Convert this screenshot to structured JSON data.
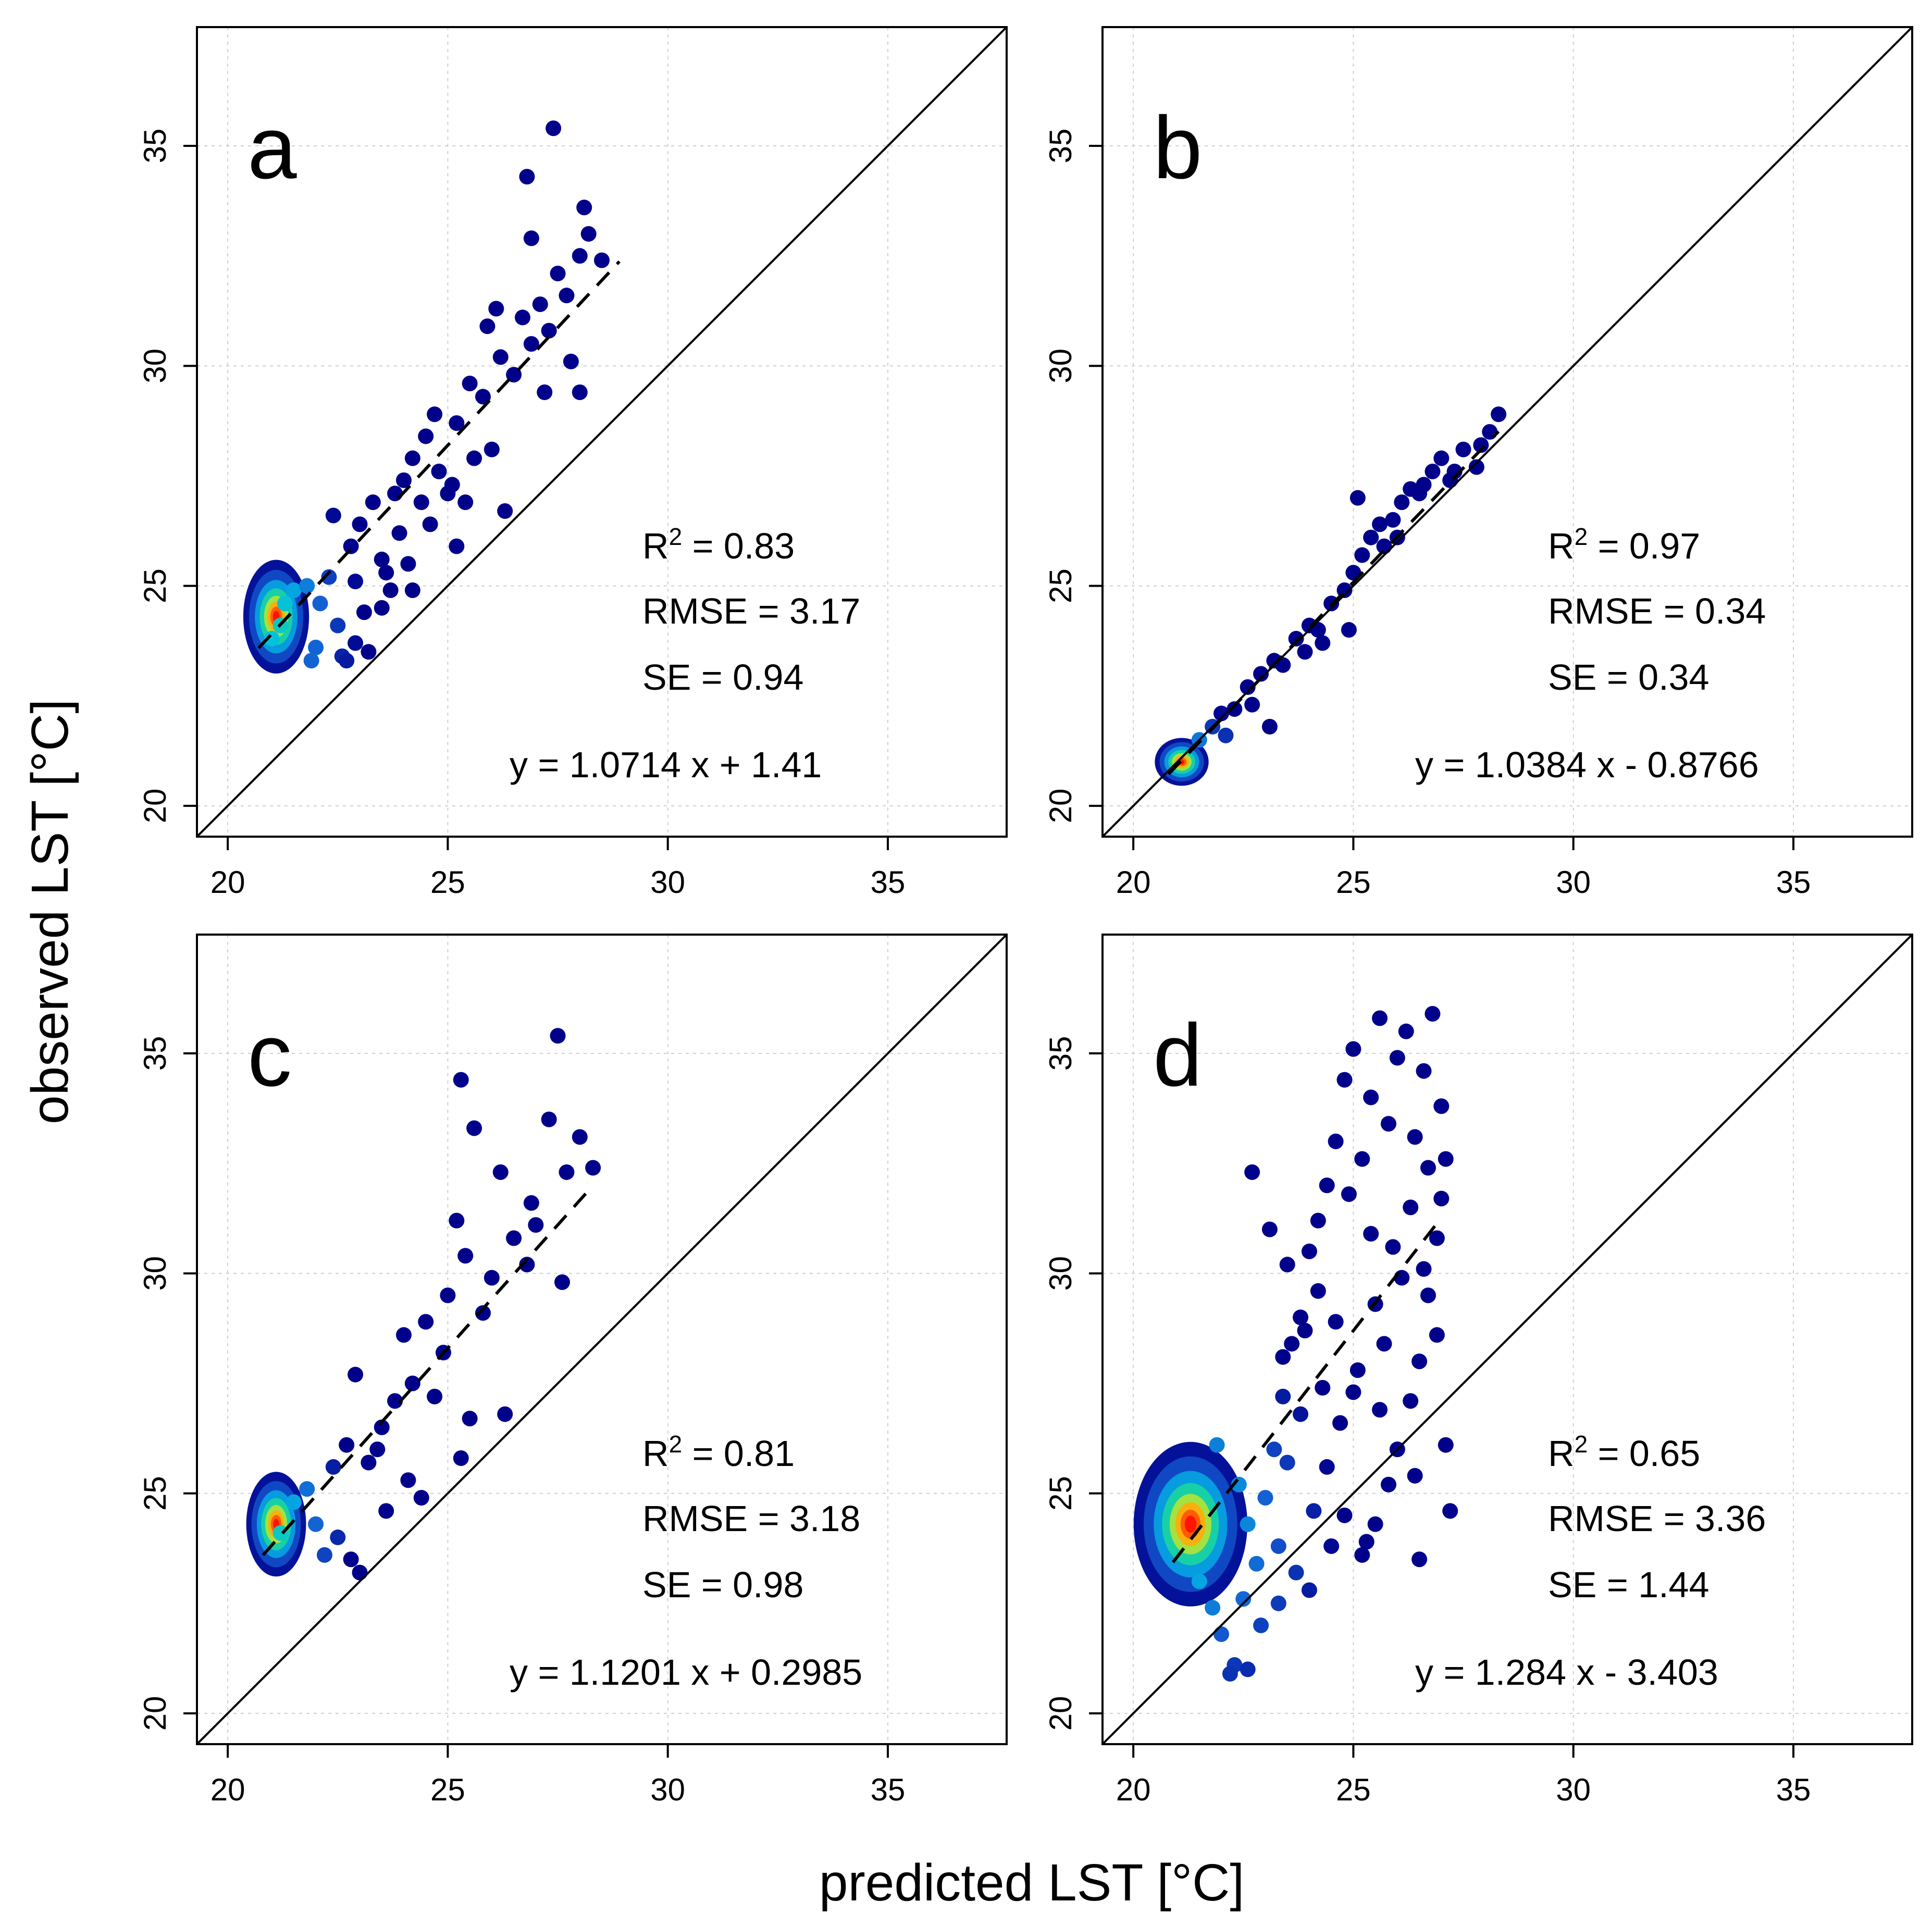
{
  "chart_data": [
    {
      "type": "scatter",
      "panel": "a",
      "xlim": [
        19.3,
        37.7
      ],
      "ylim": [
        19.3,
        37.7
      ],
      "xticks": [
        20,
        25,
        30,
        35
      ],
      "yticks": [
        20,
        25,
        30,
        35
      ],
      "grid": true,
      "one_to_one_line": true,
      "fit": {
        "slope": 1.0714,
        "intercept": 1.41,
        "x_range": [
          20.7,
          28.9
        ]
      },
      "stats": {
        "r2_prefix": "R",
        "r2_sup": "2",
        "r2_value": " = 0.83",
        "rmse": "RMSE = 3.17",
        "se": "SE = 0.94",
        "equation": "y = 1.0714 x + 1.41"
      },
      "cluster": {
        "x": 21.1,
        "y": 24.3,
        "sx": 0.22,
        "sy": 0.38
      },
      "points": [
        [
          21.2,
          24.1
        ],
        [
          21.0,
          23.8
        ],
        [
          21.3,
          24.6
        ],
        [
          21.5,
          24.9
        ],
        [
          21.8,
          25.0
        ],
        [
          22.1,
          24.6
        ],
        [
          22.3,
          25.2
        ],
        [
          22.5,
          24.1
        ],
        [
          22.0,
          23.6
        ],
        [
          22.6,
          23.4
        ],
        [
          22.9,
          23.7
        ],
        [
          23.1,
          24.4
        ],
        [
          22.8,
          25.9
        ],
        [
          23.0,
          26.4
        ],
        [
          23.3,
          26.9
        ],
        [
          23.5,
          25.6
        ],
        [
          23.7,
          24.9
        ],
        [
          23.9,
          26.2
        ],
        [
          24.0,
          27.4
        ],
        [
          24.2,
          27.9
        ],
        [
          24.4,
          26.9
        ],
        [
          24.5,
          28.4
        ],
        [
          24.8,
          27.6
        ],
        [
          25.0,
          27.1
        ],
        [
          25.2,
          28.7
        ],
        [
          25.4,
          26.9
        ],
        [
          25.6,
          27.9
        ],
        [
          25.8,
          29.3
        ],
        [
          26.0,
          28.1
        ],
        [
          26.2,
          30.2
        ],
        [
          26.5,
          29.8
        ],
        [
          26.7,
          31.1
        ],
        [
          26.9,
          30.5
        ],
        [
          27.1,
          31.4
        ],
        [
          27.3,
          30.8
        ],
        [
          27.5,
          32.1
        ],
        [
          27.7,
          31.6
        ],
        [
          28.0,
          32.5
        ],
        [
          28.2,
          33.0
        ],
        [
          28.5,
          32.4
        ],
        [
          27.4,
          35.4
        ],
        [
          26.8,
          34.3
        ],
        [
          26.9,
          32.9
        ],
        [
          28.1,
          33.6
        ],
        [
          27.8,
          30.1
        ],
        [
          28.0,
          29.4
        ],
        [
          26.3,
          26.7
        ],
        [
          25.2,
          25.9
        ],
        [
          24.2,
          24.9
        ],
        [
          23.5,
          24.5
        ],
        [
          22.7,
          23.3
        ],
        [
          23.2,
          23.5
        ],
        [
          24.6,
          26.4
        ],
        [
          25.1,
          27.3
        ],
        [
          23.8,
          27.1
        ],
        [
          22.4,
          26.6
        ],
        [
          24.7,
          28.9
        ],
        [
          25.5,
          29.6
        ],
        [
          26.1,
          31.3
        ],
        [
          27.2,
          29.4
        ],
        [
          23.6,
          25.3
        ],
        [
          22.9,
          25.1
        ],
        [
          21.9,
          23.3
        ],
        [
          24.1,
          25.5
        ],
        [
          25.9,
          30.9
        ]
      ]
    },
    {
      "type": "scatter",
      "panel": "b",
      "xlim": [
        19.3,
        37.7
      ],
      "ylim": [
        19.3,
        37.7
      ],
      "xticks": [
        20,
        25,
        30,
        35
      ],
      "yticks": [
        20,
        25,
        30,
        35
      ],
      "grid": true,
      "one_to_one_line": true,
      "fit": {
        "slope": 1.0384,
        "intercept": -0.8766,
        "x_range": [
          20.8,
          28.3
        ]
      },
      "stats": {
        "r2_prefix": "R",
        "r2_sup": "2",
        "r2_value": " = 0.97",
        "rmse": "RMSE = 0.34",
        "se": "SE = 0.34",
        "equation": "y = 1.0384 x - 0.8766"
      },
      "cluster": {
        "x": 21.1,
        "y": 21.0,
        "sx": 0.18,
        "sy": 0.16
      },
      "points": [
        [
          21.5,
          21.5
        ],
        [
          21.8,
          21.8
        ],
        [
          22.0,
          22.1
        ],
        [
          22.3,
          22.2
        ],
        [
          22.6,
          22.7
        ],
        [
          22.9,
          23.0
        ],
        [
          23.2,
          23.3
        ],
        [
          23.4,
          23.2
        ],
        [
          23.7,
          23.8
        ],
        [
          24.0,
          24.1
        ],
        [
          24.2,
          24.0
        ],
        [
          24.5,
          24.6
        ],
        [
          24.8,
          24.9
        ],
        [
          25.0,
          25.3
        ],
        [
          25.2,
          25.7
        ],
        [
          25.4,
          26.1
        ],
        [
          25.6,
          26.4
        ],
        [
          25.9,
          26.5
        ],
        [
          26.1,
          26.9
        ],
        [
          26.3,
          27.2
        ],
        [
          26.5,
          27.1
        ],
        [
          26.8,
          27.6
        ],
        [
          27.0,
          27.9
        ],
        [
          27.3,
          27.6
        ],
        [
          27.5,
          28.1
        ],
        [
          27.8,
          27.7
        ],
        [
          28.1,
          28.5
        ],
        [
          28.3,
          28.9
        ],
        [
          25.1,
          27.0
        ],
        [
          24.9,
          24.0
        ],
        [
          23.1,
          21.8
        ],
        [
          22.7,
          22.3
        ],
        [
          26.0,
          26.1
        ],
        [
          27.2,
          27.4
        ],
        [
          24.3,
          23.7
        ],
        [
          25.7,
          25.9
        ],
        [
          26.6,
          27.3
        ],
        [
          27.9,
          28.2
        ],
        [
          22.1,
          21.6
        ],
        [
          23.9,
          23.5
        ]
      ]
    },
    {
      "type": "scatter",
      "panel": "c",
      "xlim": [
        19.3,
        37.7
      ],
      "ylim": [
        19.3,
        37.7
      ],
      "xticks": [
        20,
        25,
        30,
        35
      ],
      "yticks": [
        20,
        25,
        30,
        35
      ],
      "grid": true,
      "one_to_one_line": true,
      "fit": {
        "slope": 1.1201,
        "intercept": 0.2985,
        "x_range": [
          20.8,
          28.3
        ]
      },
      "stats": {
        "r2_prefix": "R",
        "r2_sup": "2",
        "r2_value": " = 0.81",
        "rmse": "RMSE = 3.18",
        "se": "SE = 0.98",
        "equation": "y = 1.1201 x + 0.2985"
      },
      "cluster": {
        "x": 21.1,
        "y": 24.3,
        "sx": 0.2,
        "sy": 0.35
      },
      "points": [
        [
          21.2,
          24.1
        ],
        [
          21.5,
          24.8
        ],
        [
          21.8,
          25.1
        ],
        [
          22.0,
          24.3
        ],
        [
          22.2,
          23.6
        ],
        [
          22.5,
          24.0
        ],
        [
          22.8,
          23.5
        ],
        [
          23.0,
          23.2
        ],
        [
          22.7,
          26.1
        ],
        [
          22.9,
          27.7
        ],
        [
          23.2,
          25.7
        ],
        [
          23.5,
          26.5
        ],
        [
          23.8,
          27.1
        ],
        [
          24.0,
          28.6
        ],
        [
          24.2,
          27.5
        ],
        [
          24.5,
          28.9
        ],
        [
          24.7,
          27.2
        ],
        [
          25.0,
          29.5
        ],
        [
          25.2,
          31.2
        ],
        [
          25.4,
          30.4
        ],
        [
          25.6,
          33.3
        ],
        [
          25.8,
          29.1
        ],
        [
          26.0,
          29.9
        ],
        [
          26.2,
          32.3
        ],
        [
          26.5,
          30.8
        ],
        [
          26.8,
          30.2
        ],
        [
          27.0,
          31.1
        ],
        [
          27.3,
          33.5
        ],
        [
          27.5,
          35.4
        ],
        [
          27.7,
          32.3
        ],
        [
          28.0,
          33.1
        ],
        [
          28.3,
          32.4
        ],
        [
          27.6,
          29.8
        ],
        [
          26.3,
          26.8
        ],
        [
          25.3,
          25.8
        ],
        [
          24.4,
          24.9
        ],
        [
          23.6,
          24.6
        ],
        [
          25.3,
          34.4
        ],
        [
          26.9,
          31.6
        ],
        [
          24.9,
          28.2
        ],
        [
          23.4,
          26.0
        ],
        [
          22.4,
          25.6
        ],
        [
          24.1,
          25.3
        ],
        [
          25.5,
          26.7
        ]
      ]
    },
    {
      "type": "scatter",
      "panel": "d",
      "xlim": [
        19.3,
        37.7
      ],
      "ylim": [
        19.3,
        37.7
      ],
      "xticks": [
        20,
        25,
        30,
        35
      ],
      "yticks": [
        20,
        25,
        30,
        35
      ],
      "grid": true,
      "one_to_one_line": true,
      "fit": {
        "slope": 1.284,
        "intercept": -3.403,
        "x_range": [
          20.9,
          27.0
        ]
      },
      "stats": {
        "r2_prefix": "R",
        "r2_sup": "2",
        "r2_value": " = 0.65",
        "rmse": "RMSE = 3.36",
        "se": "SE = 1.44",
        "equation": "y = 1.284 x - 3.403"
      },
      "cluster": {
        "x": 21.3,
        "y": 24.3,
        "sx": 0.38,
        "sy": 0.55
      },
      "points": [
        [
          21.5,
          23.0
        ],
        [
          21.8,
          22.4
        ],
        [
          22.0,
          21.8
        ],
        [
          22.3,
          21.1
        ],
        [
          22.6,
          21.0
        ],
        [
          22.2,
          20.9
        ],
        [
          22.5,
          22.6
        ],
        [
          22.8,
          23.4
        ],
        [
          23.0,
          24.9
        ],
        [
          23.2,
          26.0
        ],
        [
          23.4,
          27.2
        ],
        [
          23.6,
          28.4
        ],
        [
          23.8,
          29.0
        ],
        [
          24.0,
          30.5
        ],
        [
          24.2,
          31.2
        ],
        [
          24.4,
          32.0
        ],
        [
          24.6,
          33.0
        ],
        [
          24.8,
          34.4
        ],
        [
          25.0,
          35.1
        ],
        [
          25.2,
          32.6
        ],
        [
          25.4,
          34.0
        ],
        [
          25.6,
          35.8
        ],
        [
          25.8,
          33.4
        ],
        [
          26.0,
          34.9
        ],
        [
          26.2,
          35.5
        ],
        [
          26.4,
          33.1
        ],
        [
          26.6,
          34.6
        ],
        [
          26.8,
          35.9
        ],
        [
          27.0,
          33.8
        ],
        [
          27.1,
          32.6
        ],
        [
          26.9,
          30.8
        ],
        [
          26.7,
          29.5
        ],
        [
          26.5,
          28.0
        ],
        [
          26.3,
          27.1
        ],
        [
          26.0,
          26.0
        ],
        [
          25.8,
          25.2
        ],
        [
          25.5,
          24.3
        ],
        [
          25.2,
          23.6
        ],
        [
          24.8,
          24.5
        ],
        [
          24.5,
          23.8
        ],
        [
          24.1,
          24.6
        ],
        [
          23.7,
          23.2
        ],
        [
          23.3,
          22.5
        ],
        [
          22.9,
          22.0
        ],
        [
          22.7,
          32.3
        ],
        [
          23.1,
          31.0
        ],
        [
          23.5,
          30.2
        ],
        [
          23.9,
          28.7
        ],
        [
          24.3,
          27.4
        ],
        [
          24.7,
          26.6
        ],
        [
          25.1,
          27.8
        ],
        [
          25.5,
          29.3
        ],
        [
          25.9,
          30.6
        ],
        [
          26.3,
          31.5
        ],
        [
          26.7,
          32.4
        ],
        [
          27.1,
          26.1
        ],
        [
          27.2,
          24.6
        ],
        [
          26.5,
          23.5
        ],
        [
          25.3,
          23.9
        ],
        [
          24.0,
          22.8
        ],
        [
          23.5,
          25.7
        ],
        [
          24.6,
          28.9
        ],
        [
          25.7,
          28.4
        ],
        [
          26.1,
          29.9
        ],
        [
          26.9,
          28.6
        ],
        [
          22.4,
          25.2
        ],
        [
          23.8,
          26.8
        ],
        [
          24.9,
          31.8
        ],
        [
          25.4,
          30.9
        ],
        [
          26.6,
          30.1
        ],
        [
          27.0,
          31.7
        ],
        [
          21.9,
          26.1
        ],
        [
          22.6,
          24.3
        ],
        [
          23.3,
          23.8
        ],
        [
          24.4,
          25.6
        ],
        [
          25.6,
          26.9
        ],
        [
          26.4,
          25.4
        ],
        [
          25.0,
          27.3
        ],
        [
          24.2,
          29.6
        ],
        [
          23.4,
          28.1
        ]
      ]
    }
  ],
  "axes": {
    "y_title": "observed LST [°C]",
    "x_title": "predicted LST [°C]"
  },
  "panel_letters": [
    "a",
    "b",
    "c",
    "d"
  ],
  "colors": {
    "low_density": "#00008B",
    "mid_density": "#1E90FF",
    "high_density": "#FF2000",
    "grid": "#cfcfcf",
    "axis": "#000000"
  }
}
